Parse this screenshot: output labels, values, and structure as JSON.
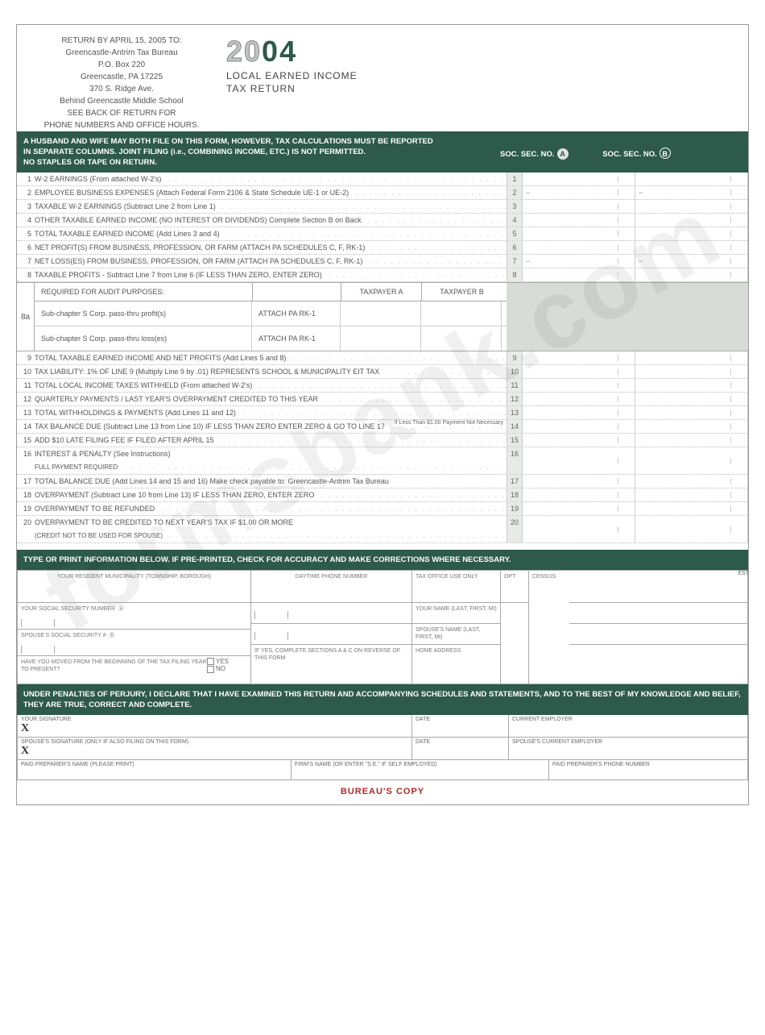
{
  "colors": {
    "green": "#2d5a4a",
    "lightgray": "#e8eae6",
    "bg": "#ffffff"
  },
  "header": {
    "return_lines": [
      "RETURN BY APRIL 15, 2005 TO:",
      "Greencastle-Antrim Tax Bureau",
      "P.O. Box 220",
      "Greencastle, PA 17225",
      "370 S. Ridge Ave.",
      "Behind Greencastle Middle School",
      "SEE BACK OF RETURN FOR",
      "PHONE NUMBERS AND OFFICE HOURS."
    ],
    "year_prefix": "20",
    "year_suffix": "04",
    "title_line1": "LOCAL EARNED INCOME",
    "title_line2": "TAX RETURN"
  },
  "notice": {
    "l1": "A HUSBAND AND WIFE MAY BOTH FILE ON THIS FORM, HOWEVER, TAX CALCULATIONS MUST BE REPORTED",
    "l2": "IN SEPARATE COLUMNS. JOINT FILING (i.e., COMBINING INCOME, ETC.) IS NOT PERMITTED.",
    "l3": "NO STAPLES OR TAPE ON RETURN.",
    "socA": "SOC. SEC. NO.",
    "socB": "SOC. SEC. NO."
  },
  "lines": [
    {
      "n": "1",
      "t": "W-2 EARNINGS (From attached W-2's)"
    },
    {
      "n": "2",
      "t": "EMPLOYEE BUSINESS EXPENSES (Attach Federal Form 2106 & State Schedule UE-1 or UE-2)",
      "neg": true
    },
    {
      "n": "3",
      "t": "TAXABLE W-2 EARNINGS (Subtract Line 2 from Line 1)"
    },
    {
      "n": "4",
      "t": "OTHER TAXABLE EARNED INCOME (NO INTEREST OR DIVIDENDS) Complete Section B on Back"
    },
    {
      "n": "5",
      "t": "TOTAL TAXABLE EARNED INCOME (Add Lines 3 and 4)"
    },
    {
      "n": "6",
      "t": "NET PROFIT(S) FROM BUSINESS, PROFESSION, OR FARM (ATTACH PA SCHEDULES C, F, RK-1)"
    },
    {
      "n": "7",
      "t": "NET LOSS(ES) FROM BUSINESS, PROFESSION, OR FARM (ATTACH PA SCHEDULES C, F, RK-1)",
      "neg": true
    },
    {
      "n": "8",
      "t": "TAXABLE PROFITS - Subtract Line 7 from Line 6 (IF LESS THAN ZERO, ENTER ZERO)"
    }
  ],
  "sect8a": {
    "num": "8a",
    "title": "REQUIRED FOR AUDIT PURPOSES:",
    "ta": "TAXPAYER A",
    "tb": "TAXPAYER B",
    "r1": "Sub-chapter S Corp. pass-thru profit(s)",
    "a1": "ATTACH PA RK-1",
    "r2": "Sub-chapter S Corp. pass-thru loss(es)",
    "a2": "ATTACH PA RK-1"
  },
  "lines2": [
    {
      "n": "9",
      "t": "TOTAL TAXABLE EARNED INCOME AND NET PROFITS (Add Lines 5 and 8)"
    },
    {
      "n": "10",
      "t": "TAX LIABILITY: 1% OF LINE 9 (Multiply Line 9 by .01) REPRESENTS SCHOOL & MUNICIPALITY EIT TAX"
    },
    {
      "n": "11",
      "t": "TOTAL LOCAL INCOME TAXES WITHHELD (From attached W-2's)"
    },
    {
      "n": "12",
      "t": "QUARTERLY PAYMENTS / LAST YEAR'S OVERPAYMENT CREDITED TO THIS YEAR"
    },
    {
      "n": "13",
      "t": "TOTAL WITHHOLDINGS & PAYMENTS (Add Lines 11 and 12)"
    },
    {
      "n": "14",
      "t": "TAX BALANCE DUE (Subtract Line 13 from Line 10) IF LESS THAN ZERO ENTER ZERO & GO TO LINE 17",
      "note": "If Less Than $1.00 Payment Not Necessary"
    },
    {
      "n": "15",
      "t": "ADD $10 LATE FILING FEE IF FILED AFTER APRIL 15"
    },
    {
      "n": "16",
      "t": "INTEREST & PENALTY (See Instructions)",
      "sub": "FULL PAYMENT REQUIRED"
    },
    {
      "n": "17",
      "t": "TOTAL BALANCE DUE (Add Lines 14 and 15 and 16) Make check payable to:  Greencastle-Antrim Tax Bureau",
      "nodots": true
    },
    {
      "n": "18",
      "t": "OVERPAYMENT (Subtract Line 10 from Line 13) IF LESS THAN ZERO, ENTER ZERO"
    },
    {
      "n": "19",
      "t": "OVERPAYMENT TO BE REFUNDED"
    },
    {
      "n": "20",
      "t": "OVERPAYMENT TO BE CREDITED TO NEXT YEAR'S TAX IF $1.00 OR MORE",
      "sub": "(CREDIT NOT TO BE USED FOR SPOUSE)"
    }
  ],
  "info_band": "TYPE OR PRINT INFORMATION BELOW. IF PRE-PRINTED, CHECK FOR ACCURACY AND MAKE CORRECTIONS WHERE NECESSARY.",
  "info": {
    "muni": "YOUR RESIDENT MUNICIPALITY (TOWNSHIP, BOROUGH)",
    "phone": "DAYTIME PHONE NUMBER",
    "tax_office": "TAX OFFICE USE ONLY",
    "opt": "OPT",
    "census": "CENSUS",
    "est": "EST",
    "ssnA": "YOUR SOCIAL SECURITY NUMBER",
    "ssnB": "SPOUSE'S SOCIAL SECURITY #",
    "nameA": "YOUR NAME (LAST, FIRST, MI)",
    "nameB": "SPOUSE'S NAME (LAST, FIRST, MI)",
    "moved": "HAVE YOU MOVED FROM THE BEGINNING OF THE TAX FILING YEAR TO PRESENT?",
    "yes": "YES",
    "no": "NO",
    "moved_note": "IF YES, COMPLETE SECTIONS A & C ON REVERSE OF THIS FORM",
    "home": "HOME ADDRESS"
  },
  "perjury": "UNDER PENALTIES OF PERJURY, I DECLARE THAT I HAVE EXAMINED THIS RETURN AND ACCOMPANYING SCHEDULES AND STATEMENTS, AND TO THE BEST OF MY KNOWLEDGE AND BELIEF, THEY ARE TRUE, CORRECT AND COMPLETE.",
  "sig": {
    "your": "YOUR SIGNATURE",
    "date": "DATE",
    "emp": "CURRENT EMPLOYER",
    "spouse": "SPOUSE'S SIGNATURE (ONLY IF ALSO FILING ON THIS FORM)",
    "semp": "SPOUSE'S CURRENT EMPLOYER",
    "prep": "PAID PREPARER'S NAME (PLEASE PRINT)",
    "firm": "FIRM'S NAME (OR ENTER \"S.E.\" IF SELF EMPLOYED)",
    "pphone": "PAID PREPARER'S PHONE NUMBER",
    "x": "X"
  },
  "footer": "BUREAU'S COPY",
  "watermark": "formsbank.com"
}
